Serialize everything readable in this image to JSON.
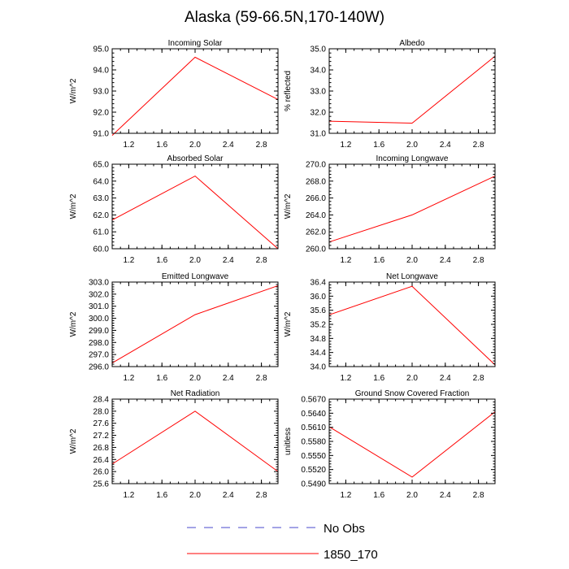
{
  "figure": {
    "title": "Alaska (59-66.5N,170-140W)"
  },
  "legend": [
    {
      "label": "No Obs",
      "color": "#4a4acc",
      "style": "dashed"
    },
    {
      "label": "1850_170",
      "color": "#ff0000",
      "style": "solid"
    }
  ],
  "chart_data": [
    {
      "type": "line",
      "title": "Incoming Solar",
      "ylabel": "W/m^2",
      "xlim": [
        1.0,
        3.0
      ],
      "ylim": [
        91.0,
        95.0
      ],
      "xticks": [
        1.2,
        1.6,
        2.0,
        2.4,
        2.8
      ],
      "xtick_labels": [
        "1.2",
        "1.6",
        "2.0",
        "2.4",
        "2.8"
      ],
      "yticks": [
        91.0,
        92.0,
        93.0,
        94.0,
        95.0
      ],
      "ytick_labels": [
        "91.0",
        "92.0",
        "93.0",
        "94.0",
        "95.0"
      ],
      "series": [
        {
          "name": "1850_170",
          "x": [
            1.0,
            2.0,
            3.0
          ],
          "values": [
            90.9,
            94.6,
            92.6
          ]
        }
      ]
    },
    {
      "type": "line",
      "title": "Albedo",
      "ylabel": "% reflected",
      "xlim": [
        1.0,
        3.0
      ],
      "ylim": [
        31.0,
        35.0
      ],
      "xticks": [
        1.2,
        1.6,
        2.0,
        2.4,
        2.8
      ],
      "xtick_labels": [
        "1.2",
        "1.6",
        "2.0",
        "2.4",
        "2.8"
      ],
      "yticks": [
        31.0,
        32.0,
        33.0,
        34.0,
        35.0
      ],
      "ytick_labels": [
        "31.0",
        "32.0",
        "33.0",
        "34.0",
        "35.0"
      ],
      "series": [
        {
          "name": "1850_170",
          "x": [
            1.0,
            2.0,
            3.0
          ],
          "values": [
            31.57,
            31.48,
            34.65
          ]
        }
      ]
    },
    {
      "type": "line",
      "title": "Absorbed Solar",
      "ylabel": "W/m^2",
      "xlim": [
        1.0,
        3.0
      ],
      "ylim": [
        60.0,
        65.0
      ],
      "xticks": [
        1.2,
        1.6,
        2.0,
        2.4,
        2.8
      ],
      "xtick_labels": [
        "1.2",
        "1.6",
        "2.0",
        "2.4",
        "2.8"
      ],
      "yticks": [
        60.0,
        61.0,
        62.0,
        63.0,
        64.0,
        65.0
      ],
      "ytick_labels": [
        "60.0",
        "61.0",
        "62.0",
        "63.0",
        "64.0",
        "65.0"
      ],
      "series": [
        {
          "name": "1850_170",
          "x": [
            1.0,
            2.0,
            3.0
          ],
          "values": [
            61.7,
            64.3,
            60.0
          ]
        }
      ]
    },
    {
      "type": "line",
      "title": "Incoming Longwave",
      "ylabel": "W/m^2",
      "xlim": [
        1.0,
        3.0
      ],
      "ylim": [
        260.0,
        270.0
      ],
      "xticks": [
        1.2,
        1.6,
        2.0,
        2.4,
        2.8
      ],
      "xtick_labels": [
        "1.2",
        "1.6",
        "2.0",
        "2.4",
        "2.8"
      ],
      "yticks": [
        260.0,
        262.0,
        264.0,
        266.0,
        268.0,
        270.0
      ],
      "ytick_labels": [
        "260.0",
        "262.0",
        "264.0",
        "266.0",
        "268.0",
        "270.0"
      ],
      "series": [
        {
          "name": "1850_170",
          "x": [
            1.0,
            2.0,
            3.0
          ],
          "values": [
            260.8,
            264.0,
            268.6
          ]
        }
      ]
    },
    {
      "type": "line",
      "title": "Emitted Longwave",
      "ylabel": "W/m^2",
      "xlim": [
        1.0,
        3.0
      ],
      "ylim": [
        296.0,
        303.0
      ],
      "xticks": [
        1.2,
        1.6,
        2.0,
        2.4,
        2.8
      ],
      "xtick_labels": [
        "1.2",
        "1.6",
        "2.0",
        "2.4",
        "2.8"
      ],
      "yticks": [
        296.0,
        297.0,
        298.0,
        299.0,
        300.0,
        301.0,
        302.0,
        303.0
      ],
      "ytick_labels": [
        "296.0",
        "297.0",
        "298.0",
        "299.0",
        "300.0",
        "301.0",
        "302.0",
        "303.0"
      ],
      "series": [
        {
          "name": "1850_170",
          "x": [
            1.0,
            2.0,
            3.0
          ],
          "values": [
            296.3,
            300.3,
            302.7
          ]
        }
      ]
    },
    {
      "type": "line",
      "title": "Net Longwave",
      "ylabel": "W/m^2",
      "xlim": [
        1.0,
        3.0
      ],
      "ylim": [
        34.0,
        36.4
      ],
      "xticks": [
        1.2,
        1.6,
        2.0,
        2.4,
        2.8
      ],
      "xtick_labels": [
        "1.2",
        "1.6",
        "2.0",
        "2.4",
        "2.8"
      ],
      "yticks": [
        34.0,
        34.4,
        34.8,
        35.2,
        35.6,
        36.0,
        36.4
      ],
      "ytick_labels": [
        "34.0",
        "34.4",
        "34.8",
        "35.2",
        "35.6",
        "36.0",
        "36.4"
      ],
      "series": [
        {
          "name": "1850_170",
          "x": [
            1.0,
            2.0,
            3.0
          ],
          "values": [
            35.47,
            36.28,
            34.05
          ]
        }
      ]
    },
    {
      "type": "line",
      "title": "Net Radiation",
      "ylabel": "W/m^2",
      "xlim": [
        1.0,
        3.0
      ],
      "ylim": [
        25.6,
        28.4
      ],
      "xticks": [
        1.2,
        1.6,
        2.0,
        2.4,
        2.8
      ],
      "xtick_labels": [
        "1.2",
        "1.6",
        "2.0",
        "2.4",
        "2.8"
      ],
      "yticks": [
        25.6,
        26.0,
        26.4,
        26.8,
        27.2,
        27.6,
        28.0,
        28.4
      ],
      "ytick_labels": [
        "25.6",
        "26.0",
        "26.4",
        "26.8",
        "27.2",
        "27.6",
        "28.0",
        "28.4"
      ],
      "series": [
        {
          "name": "1850_170",
          "x": [
            1.0,
            2.0,
            3.0
          ],
          "values": [
            26.25,
            28.0,
            26.0
          ]
        }
      ]
    },
    {
      "type": "line",
      "title": "Ground Snow Covered Fraction",
      "ylabel": "unitless",
      "xlim": [
        1.0,
        3.0
      ],
      "ylim": [
        0.549,
        0.567
      ],
      "xticks": [
        1.2,
        1.6,
        2.0,
        2.4,
        2.8
      ],
      "xtick_labels": [
        "1.2",
        "1.6",
        "2.0",
        "2.4",
        "2.8"
      ],
      "yticks": [
        0.549,
        0.552,
        0.555,
        0.558,
        0.561,
        0.564,
        0.567
      ],
      "ytick_labels": [
        "0.5490",
        "0.5520",
        "0.5550",
        "0.5580",
        "0.5610",
        "0.5640",
        "0.5670"
      ],
      "series": [
        {
          "name": "1850_170",
          "x": [
            1.0,
            2.0,
            3.0
          ],
          "values": [
            0.5611,
            0.5504,
            0.5643
          ]
        }
      ]
    }
  ]
}
